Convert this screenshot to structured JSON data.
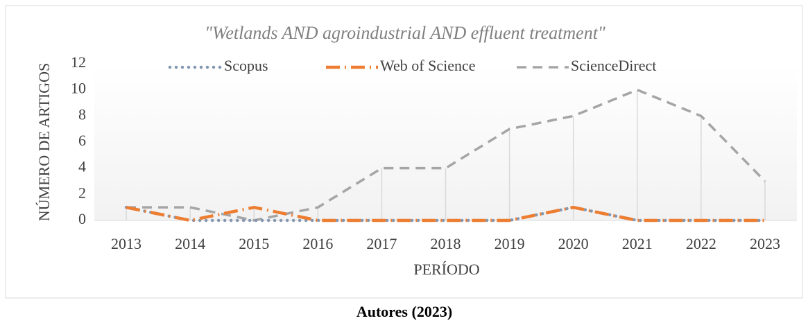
{
  "chart_data": {
    "type": "line",
    "title": "\"Wetlands AND agroindustrial AND effluent treatment\"",
    "x_label": "PERÍODO",
    "y_label": "NÚMERO DE ARTIGOS",
    "categories": [
      "2013",
      "2014",
      "2015",
      "2016",
      "2017",
      "2018",
      "2019",
      "2020",
      "2021",
      "2022",
      "2023"
    ],
    "series": [
      {
        "name": "Scopus",
        "color": "#8497b0",
        "values": [
          1,
          0,
          0,
          0,
          0,
          0,
          0,
          1,
          0,
          0,
          0
        ]
      },
      {
        "name": "Web of Science",
        "color": "#ed7d31",
        "values": [
          1,
          0,
          1,
          0,
          0,
          0,
          0,
          1,
          0,
          0,
          0
        ]
      },
      {
        "name": "ScienceDirect",
        "color": "#a5a5a5",
        "values": [
          1,
          1,
          0,
          1,
          4,
          4,
          7,
          8,
          10,
          8,
          3
        ]
      }
    ],
    "ylim": [
      0,
      12
    ],
    "yticks": [
      0,
      2,
      4,
      6,
      8,
      10,
      12
    ],
    "drop_lines": true
  },
  "caption": "Autores (2023)"
}
